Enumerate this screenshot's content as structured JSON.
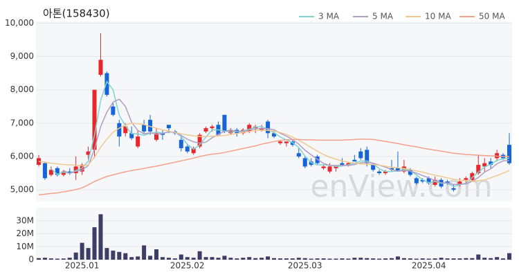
{
  "chart_data": {
    "type": "candlestick",
    "title": "아톤(158430)",
    "watermark": "enView.com",
    "up_color": "#e8262b",
    "down_color": "#1565d8",
    "volume_color": "#3d3d66",
    "xticks": [
      {
        "value": 7,
        "label": "2025.01"
      },
      {
        "value": 24,
        "label": "2025.02"
      },
      {
        "value": 43,
        "label": "2025.03"
      },
      {
        "value": 63,
        "label": "2025.04"
      }
    ],
    "ylim": [
      4650,
      10050
    ],
    "yticks": [
      {
        "value": 5000,
        "label": "5,000"
      },
      {
        "value": 6000,
        "label": "6,000"
      },
      {
        "value": 7000,
        "label": "7,000"
      },
      {
        "value": 8000,
        "label": "8,000"
      },
      {
        "value": 9000,
        "label": "9,000"
      },
      {
        "value": 10000,
        "label": "10,000"
      }
    ],
    "vlim": [
      0,
      40
    ],
    "vticks": [
      0,
      {
        "value": 10,
        "label": "10M"
      },
      {
        "value": 20,
        "label": "20M"
      },
      {
        "value": 30,
        "label": "30M"
      }
    ],
    "open": [
      5750,
      5800,
      5450,
      5650,
      5450,
      5550,
      5500,
      5550,
      6050,
      6200,
      8450,
      8500,
      7500,
      7000,
      6700,
      6700,
      6300,
      6950,
      7100,
      6500,
      6700,
      6950,
      6750,
      6500,
      6300,
      6100,
      6300,
      6750,
      6850,
      6950,
      7250,
      6700,
      6800,
      6700,
      6750,
      6850,
      6800,
      7050,
      6700,
      6400,
      6400,
      6450,
      6100,
      5950,
      5850,
      6000,
      5650,
      5550,
      5650,
      5800,
      5750,
      5900,
      6150,
      6200,
      5750,
      5550,
      5500,
      5650,
      5650,
      5550,
      5600,
      5350,
      5300,
      5350,
      5150,
      5300,
      5250,
      5050,
      5150,
      5300,
      5300,
      5500,
      5700,
      5850,
      5950,
      6050,
      6350
    ],
    "high": [
      6050,
      5850,
      5700,
      5700,
      5600,
      5650,
      6000,
      5800,
      6300,
      8000,
      9700,
      8550,
      7600,
      7100,
      7000,
      6900,
      6800,
      7100,
      7250,
      6850,
      6800,
      6950,
      6800,
      6650,
      6350,
      6300,
      6700,
      6900,
      6950,
      7050,
      7250,
      6850,
      6850,
      6850,
      7000,
      6950,
      6950,
      7100,
      6750,
      6500,
      6450,
      6500,
      6250,
      6000,
      5950,
      6050,
      5750,
      5800,
      5750,
      5950,
      5850,
      6050,
      6250,
      6300,
      5800,
      5600,
      5600,
      5900,
      6150,
      5900,
      5650,
      5400,
      5350,
      5400,
      5400,
      5350,
      5300,
      5150,
      5350,
      5400,
      5550,
      6050,
      5950,
      5950,
      6200,
      6100,
      6700
    ],
    "low": [
      5700,
      5300,
      5400,
      5400,
      5400,
      5450,
      5300,
      5450,
      5900,
      5950,
      8400,
      7800,
      7200,
      6300,
      6600,
      6500,
      6250,
      6700,
      6650,
      6450,
      6500,
      6700,
      6650,
      6150,
      6100,
      6050,
      6250,
      6700,
      6750,
      6600,
      6700,
      6650,
      6600,
      6650,
      6700,
      6700,
      6750,
      6550,
      6550,
      6350,
      6300,
      6300,
      5950,
      5650,
      5700,
      5750,
      5600,
      5500,
      5550,
      5700,
      5700,
      5850,
      5900,
      5700,
      5550,
      5450,
      5450,
      5550,
      5550,
      5500,
      5400,
      5150,
      5200,
      5150,
      5100,
      5050,
      5150,
      4950,
      5100,
      5200,
      5250,
      5450,
      5550,
      5650,
      5850,
      5900,
      5750
    ],
    "close": [
      5950,
      5350,
      5600,
      5450,
      5550,
      5500,
      5700,
      5750,
      6150,
      8000,
      8900,
      7850,
      7250,
      6600,
      6900,
      6550,
      6600,
      6750,
      6750,
      6700,
      6650,
      6850,
      6700,
      6250,
      6150,
      6250,
      6650,
      6850,
      6900,
      6650,
      6750,
      6800,
      6700,
      6800,
      6950,
      6900,
      6850,
      6700,
      6600,
      6450,
      6450,
      6350,
      6000,
      5700,
      5750,
      5800,
      5700,
      5700,
      5700,
      5750,
      5800,
      5850,
      5950,
      5800,
      5600,
      5500,
      5550,
      5600,
      5550,
      5700,
      5450,
      5200,
      5250,
      5200,
      5300,
      5100,
      5200,
      5000,
      5250,
      5350,
      5500,
      5750,
      5800,
      5750,
      6100,
      5950,
      5800
    ],
    "volume": [
      1.2,
      1.5,
      1.0,
      0.8,
      0.9,
      1.5,
      5.5,
      13,
      9,
      25,
      35,
      9,
      7,
      6,
      5,
      2,
      2.5,
      11,
      3,
      8,
      2,
      1.5,
      1,
      4,
      2,
      1.5,
      6.5,
      2,
      2,
      1.5,
      3,
      1.5,
      1,
      1.5,
      2,
      1.2,
      1.5,
      2.5,
      1.2,
      1,
      1,
      1,
      1.5,
      1.2,
      0.8,
      1,
      1,
      0.8,
      0.8,
      1,
      0.8,
      1.5,
      1.5,
      1.2,
      1,
      0.8,
      1,
      1.2,
      2.5,
      1.2,
      1,
      0.8,
      1,
      0.8,
      1,
      1.5,
      1,
      1,
      1,
      1.2,
      1.2,
      4,
      1.5,
      1.2,
      2,
      1,
      5
    ],
    "series": [
      {
        "name": "3 MA",
        "color": "#7fd3cf",
        "values": [
          null,
          null,
          5633,
          5467,
          5533,
          5500,
          5583,
          5650,
          5867,
          6633,
          7683,
          8250,
          8000,
          7233,
          6917,
          6683,
          6683,
          6633,
          6700,
          6733,
          6700,
          6733,
          6733,
          6600,
          6367,
          6217,
          6350,
          6583,
          6800,
          6800,
          6767,
          6733,
          6750,
          6767,
          6817,
          6883,
          6900,
          6817,
          6717,
          6583,
          6500,
          6417,
          6267,
          6017,
          5817,
          5750,
          5750,
          5733,
          5700,
          5717,
          5750,
          5800,
          5867,
          5867,
          5783,
          5633,
          5550,
          5550,
          5567,
          5617,
          5567,
          5450,
          5300,
          5217,
          5250,
          5200,
          5200,
          5100,
          5150,
          5200,
          5367,
          5533,
          5683,
          5767,
          5883,
          5933,
          5950
        ]
      },
      {
        "name": "5 MA",
        "color": "#b09cc4",
        "values": [
          null,
          null,
          null,
          null,
          5580,
          5490,
          5560,
          5590,
          5730,
          6220,
          6900,
          7330,
          7630,
          7720,
          7500,
          7030,
          6780,
          6680,
          6710,
          6670,
          6690,
          6740,
          6730,
          6630,
          6520,
          6440,
          6400,
          6430,
          6560,
          6660,
          6760,
          6790,
          6760,
          6740,
          6800,
          6830,
          6840,
          6840,
          6800,
          6700,
          6610,
          6510,
          6370,
          6190,
          6050,
          5920,
          5790,
          5730,
          5730,
          5730,
          5730,
          5760,
          5810,
          5830,
          5800,
          5740,
          5680,
          5610,
          5560,
          5580,
          5570,
          5500,
          5430,
          5360,
          5280,
          5210,
          5210,
          5160,
          5170,
          5180,
          5260,
          5370,
          5530,
          5630,
          5780,
          5870,
          5880
        ]
      },
      {
        "name": "10 MA",
        "color": "#f0c890",
        "values": [
          5850,
          5830,
          5800,
          5780,
          5760,
          5750,
          5740,
          5720,
          5750,
          5980,
          6280,
          6520,
          6730,
          6850,
          6950,
          7000,
          6980,
          6960,
          6900,
          6850,
          6800,
          6760,
          6720,
          6680,
          6650,
          6620,
          6600,
          6600,
          6610,
          6620,
          6630,
          6660,
          6690,
          6720,
          6750,
          6780,
          6790,
          6780,
          6760,
          6720,
          6660,
          6580,
          6490,
          6380,
          6270,
          6160,
          6060,
          5980,
          5920,
          5870,
          5830,
          5800,
          5780,
          5770,
          5760,
          5740,
          5710,
          5680,
          5660,
          5640,
          5610,
          5570,
          5530,
          5480,
          5440,
          5400,
          5360,
          5320,
          5290,
          5270,
          5260,
          5270,
          5300,
          5360,
          5430,
          5500,
          5580
        ]
      },
      {
        "name": "50 MA",
        "color": "#f4a08a",
        "values": [
          4850,
          4870,
          4890,
          4910,
          4940,
          4970,
          5010,
          5060,
          5150,
          5250,
          5330,
          5400,
          5450,
          5500,
          5540,
          5580,
          5610,
          5640,
          5680,
          5710,
          5750,
          5790,
          5830,
          5870,
          5910,
          5950,
          6000,
          6040,
          6070,
          6090,
          6120,
          6160,
          6200,
          6240,
          6280,
          6320,
          6370,
          6410,
          6450,
          6480,
          6500,
          6510,
          6510,
          6500,
          6500,
          6490,
          6490,
          6490,
          6490,
          6490,
          6500,
          6510,
          6520,
          6520,
          6510,
          6480,
          6450,
          6420,
          6390,
          6350,
          6320,
          6290,
          6250,
          6220,
          6190,
          6160,
          6130,
          6100,
          6080,
          6060,
          6050,
          6040,
          6030,
          6020,
          6010,
          6000,
          6000
        ]
      }
    ]
  }
}
